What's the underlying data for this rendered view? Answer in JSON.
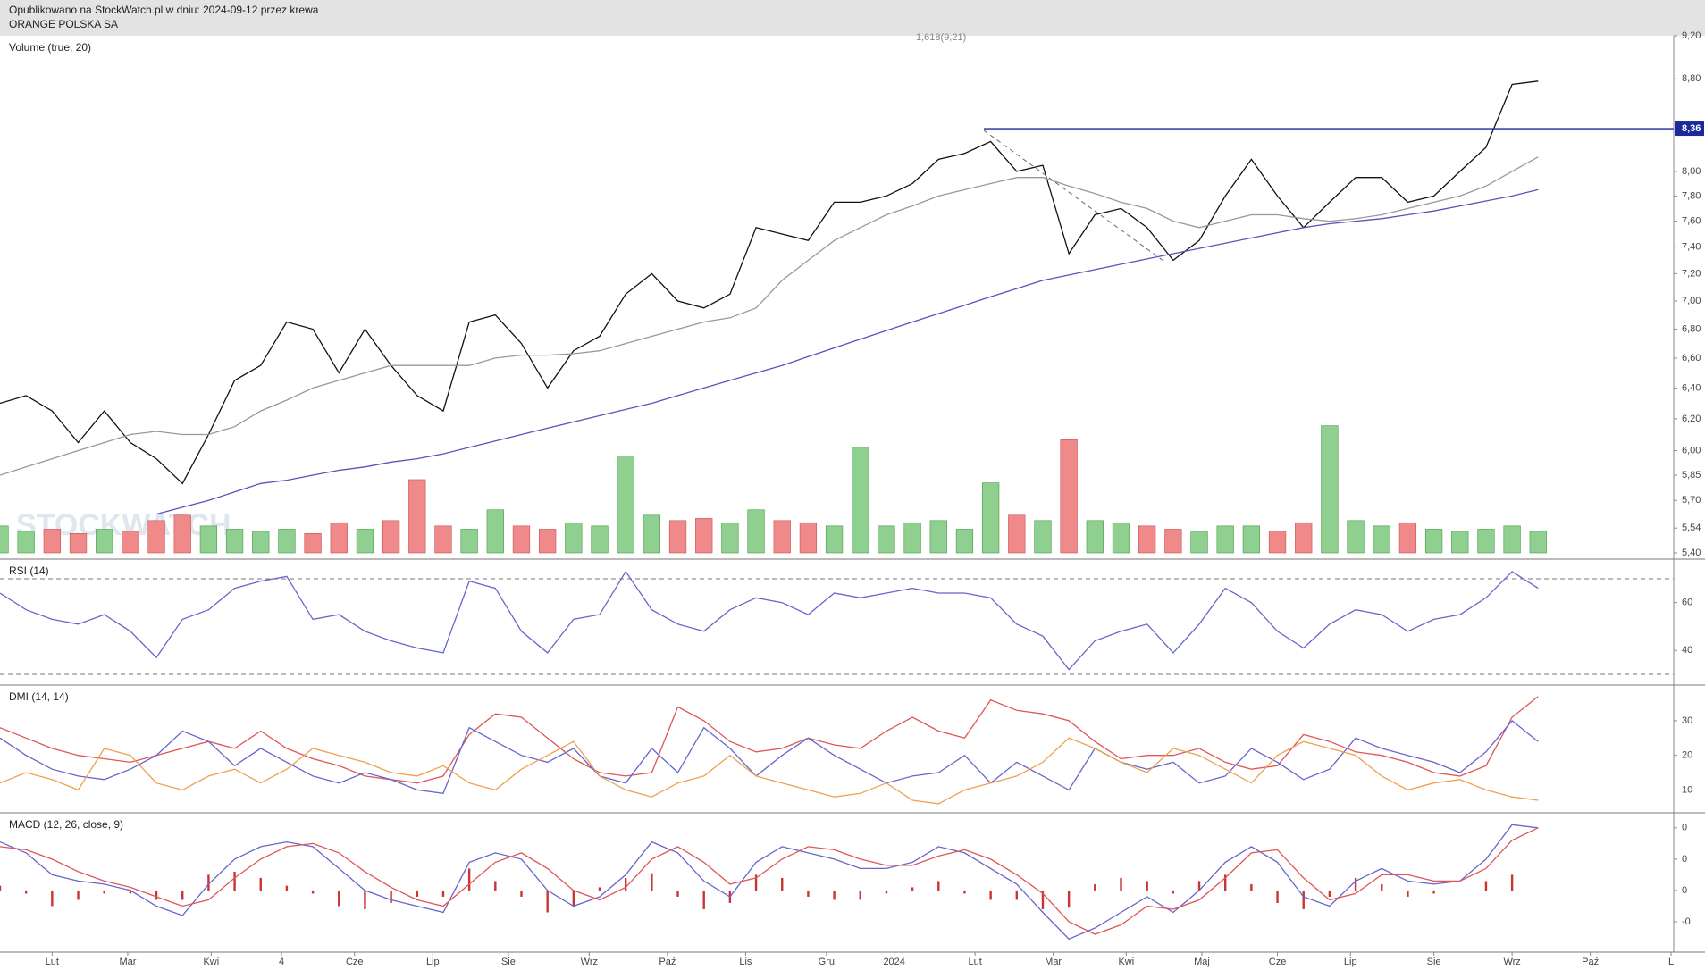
{
  "header": {
    "line1": "Opublikowano na StockWatch.pl w dniu: 2024-09-12 przez krewa",
    "line2": "ORANGE POLSKA SA"
  },
  "watermark": "STOCKWATCH",
  "xaxis": {
    "xlim": [
      0,
      64.2
    ],
    "xticks": [
      {
        "value": 2.0,
        "label": "Lut"
      },
      {
        "value": 4.9,
        "label": "Mar"
      },
      {
        "value": 8.1,
        "label": "Kwi"
      },
      {
        "value": 10.8,
        "label": "4"
      },
      {
        "value": 13.6,
        "label": "Cze"
      },
      {
        "value": 16.6,
        "label": "Lip"
      },
      {
        "value": 19.5,
        "label": "Sie"
      },
      {
        "value": 22.6,
        "label": "Wrz"
      },
      {
        "value": 25.6,
        "label": "Paź"
      },
      {
        "value": 28.6,
        "label": "Lis"
      },
      {
        "value": 31.7,
        "label": "Gru"
      },
      {
        "value": 34.3,
        "label": "2024"
      },
      {
        "value": 37.4,
        "label": "Lut"
      },
      {
        "value": 40.4,
        "label": "Mar"
      },
      {
        "value": 43.2,
        "label": "Kwi"
      },
      {
        "value": 46.1,
        "label": "Maj"
      },
      {
        "value": 49.0,
        "label": "Cze"
      },
      {
        "value": 51.8,
        "label": "Lip"
      },
      {
        "value": 55.0,
        "label": "Sie"
      },
      {
        "value": 58.0,
        "label": "Wrz"
      },
      {
        "value": 61.0,
        "label": "Paź"
      },
      {
        "value": 64.1,
        "label": "L"
      }
    ]
  },
  "chart_data": [
    {
      "type": "line",
      "title": "Volume (true, 20)",
      "log": true,
      "ylim": [
        5.4,
        9.2
      ],
      "yticks": [
        {
          "value": 9.2,
          "label": "9,20"
        },
        {
          "value": 8.8,
          "label": "8,80"
        },
        {
          "value": 8.0,
          "label": "8,00"
        },
        {
          "value": 7.8,
          "label": "7,80"
        },
        {
          "value": 7.6,
          "label": "7,60"
        },
        {
          "value": 7.4,
          "label": "7,40"
        },
        {
          "value": 7.2,
          "label": "7,20"
        },
        {
          "value": 7.0,
          "label": "7,00"
        },
        {
          "value": 6.8,
          "label": "6,80"
        },
        {
          "value": 6.6,
          "label": "6,60"
        },
        {
          "value": 6.4,
          "label": "6,40"
        },
        {
          "value": 6.2,
          "label": "6,20"
        },
        {
          "value": 6.0,
          "label": "6,00"
        },
        {
          "value": 5.85,
          "label": "5,85"
        },
        {
          "value": 5.7,
          "label": "5,70"
        },
        {
          "value": 5.54,
          "label": "5,54"
        },
        {
          "value": 5.4,
          "label": "5,40"
        }
      ],
      "hline": {
        "value": 8.36,
        "label": "8,36",
        "color": "#1a2a9a"
      },
      "annotation": "1,618(9,21)",
      "series": [
        {
          "color": "#111111",
          "values": [
            6.3,
            6.35,
            6.25,
            6.05,
            6.25,
            6.05,
            5.95,
            5.8,
            6.1,
            6.45,
            6.55,
            6.85,
            6.8,
            6.5,
            6.8,
            6.55,
            6.35,
            6.25,
            6.85,
            6.9,
            6.7,
            6.4,
            6.65,
            6.75,
            7.05,
            7.2,
            7.0,
            6.95,
            7.05,
            7.55,
            7.5,
            7.45,
            7.75,
            7.75,
            7.8,
            7.9,
            8.1,
            8.15,
            8.25,
            8.0,
            8.05,
            7.35,
            7.65,
            7.7,
            7.55,
            7.3,
            7.45,
            7.8,
            8.1,
            7.8,
            7.55,
            7.75,
            7.95,
            7.95,
            7.75,
            7.8,
            8.0,
            8.2,
            8.75,
            8.78
          ]
        },
        {
          "color": "#999999",
          "values": [
            5.85,
            5.9,
            5.95,
            6.0,
            6.05,
            6.1,
            6.12,
            6.1,
            6.1,
            6.15,
            6.25,
            6.32,
            6.4,
            6.45,
            6.5,
            6.55,
            6.55,
            6.55,
            6.55,
            6.6,
            6.62,
            6.62,
            6.63,
            6.65,
            6.7,
            6.75,
            6.8,
            6.85,
            6.88,
            6.95,
            7.15,
            7.3,
            7.45,
            7.55,
            7.65,
            7.72,
            7.8,
            7.85,
            7.9,
            7.95,
            7.95,
            7.88,
            7.82,
            7.75,
            7.7,
            7.6,
            7.55,
            7.6,
            7.65,
            7.65,
            7.62,
            7.6,
            7.62,
            7.65,
            7.7,
            7.75,
            7.8,
            7.88,
            8.0,
            8.12
          ]
        },
        {
          "color": "#5555bb",
          "values": [
            null,
            null,
            null,
            null,
            null,
            null,
            5.62,
            5.66,
            5.7,
            5.75,
            5.8,
            5.82,
            5.85,
            5.88,
            5.9,
            5.93,
            5.95,
            5.98,
            6.02,
            6.06,
            6.1,
            6.14,
            6.18,
            6.22,
            6.26,
            6.3,
            6.35,
            6.4,
            6.45,
            6.5,
            6.55,
            6.61,
            6.67,
            6.73,
            6.79,
            6.85,
            6.91,
            6.97,
            7.03,
            7.09,
            7.15,
            7.19,
            7.23,
            7.27,
            7.31,
            7.35,
            7.39,
            7.43,
            7.47,
            7.51,
            7.55,
            7.58,
            7.6,
            7.62,
            7.65,
            7.68,
            7.72,
            7.76,
            7.8,
            7.85
          ]
        }
      ],
      "volume": {
        "vlim": [
          0,
          480
        ],
        "up_color": "#8fcf8f",
        "down_color": "#f08a8a",
        "values": [
          25,
          20,
          22,
          18,
          22,
          20,
          30,
          35,
          25,
          22,
          20,
          22,
          18,
          28,
          22,
          30,
          68,
          25,
          22,
          40,
          25,
          22,
          28,
          25,
          90,
          35,
          30,
          32,
          28,
          40,
          30,
          28,
          25,
          98,
          25,
          28,
          30,
          22,
          65,
          35,
          30,
          105,
          30,
          28,
          25,
          22,
          20,
          25,
          25,
          20,
          28,
          118,
          30,
          25,
          28,
          22,
          20,
          22,
          25,
          20
        ]
      }
    },
    {
      "type": "line",
      "title": "RSI (14)",
      "ylim": [
        25.5,
        78.2
      ],
      "yticks": [
        60,
        40
      ],
      "levels": [
        70,
        30
      ],
      "series": [
        {
          "color": "#6666cc",
          "values": [
            64,
            57,
            53,
            51,
            55,
            48,
            37,
            53,
            57,
            66,
            69,
            71,
            53,
            55,
            48,
            44,
            41,
            39,
            69,
            66,
            48,
            39,
            53,
            55,
            73,
            57,
            51,
            48,
            57,
            62,
            60,
            55,
            64,
            62,
            64,
            66,
            64,
            64,
            62,
            51,
            46,
            32,
            44,
            48,
            51,
            39,
            51,
            66,
            60,
            48,
            41,
            51,
            57,
            55,
            48,
            53,
            55,
            62,
            73,
            66
          ]
        }
      ]
    },
    {
      "type": "line",
      "title": "DMI (14, 14)",
      "ylim": [
        3.4,
        40.3
      ],
      "yticks": [
        30,
        20,
        10
      ],
      "series": [
        {
          "color": "#e05555",
          "values": [
            28,
            25,
            22,
            20,
            19,
            18,
            20,
            22,
            24,
            22,
            27,
            22,
            19,
            17,
            14,
            13,
            12,
            14,
            26,
            32,
            31,
            25,
            19,
            15,
            14,
            15,
            34,
            30,
            24,
            21,
            22,
            25,
            23,
            22,
            27,
            31,
            27,
            25,
            36,
            33,
            32,
            30,
            24,
            19,
            20,
            20,
            22,
            18,
            16,
            17,
            26,
            24,
            21,
            20,
            18,
            15,
            14,
            17,
            31,
            37
          ]
        },
        {
          "color": "#6666cc",
          "values": [
            25,
            20,
            16,
            14,
            13,
            16,
            20,
            27,
            24,
            17,
            22,
            18,
            14,
            12,
            15,
            13,
            10,
            9,
            28,
            24,
            20,
            18,
            22,
            14,
            12,
            22,
            15,
            28,
            22,
            14,
            20,
            25,
            20,
            16,
            12,
            14,
            15,
            20,
            12,
            18,
            14,
            10,
            22,
            18,
            16,
            18,
            12,
            14,
            22,
            18,
            13,
            16,
            25,
            22,
            20,
            18,
            15,
            21,
            30,
            24
          ]
        },
        {
          "color": "#f0a050",
          "values": [
            12,
            15,
            13,
            10,
            22,
            20,
            12,
            10,
            14,
            16,
            12,
            16,
            22,
            20,
            18,
            15,
            14,
            17,
            12,
            10,
            16,
            20,
            24,
            14,
            10,
            8,
            12,
            14,
            20,
            14,
            12,
            10,
            8,
            9,
            12,
            7,
            6,
            10,
            12,
            14,
            18,
            25,
            22,
            18,
            15,
            22,
            20,
            16,
            12,
            20,
            24,
            22,
            20,
            14,
            10,
            12,
            13,
            10,
            8,
            7
          ]
        }
      ]
    },
    {
      "type": "line",
      "title": "MACD (12, 26, close, 9)",
      "ylim": [
        -0.197,
        0.248
      ],
      "yticks": [
        {
          "value": 0.2,
          "label": "0"
        },
        {
          "value": 0.1,
          "label": "0"
        },
        {
          "value": 0,
          "label": "0"
        },
        {
          "value": -0.1,
          "label": "-0"
        }
      ],
      "series": [
        {
          "color": "#6666cc",
          "values": [
            0.155,
            0.12,
            0.05,
            0.03,
            0.02,
            0.0,
            -0.05,
            -0.08,
            0.02,
            0.1,
            0.14,
            0.155,
            0.14,
            0.07,
            0.0,
            -0.03,
            -0.05,
            -0.07,
            0.09,
            0.12,
            0.1,
            0.0,
            -0.05,
            -0.02,
            0.05,
            0.155,
            0.12,
            0.03,
            -0.02,
            0.09,
            0.14,
            0.12,
            0.1,
            0.07,
            0.07,
            0.09,
            0.14,
            0.12,
            0.07,
            0.02,
            -0.07,
            -0.155,
            -0.12,
            -0.07,
            -0.02,
            -0.07,
            0.0,
            0.09,
            0.14,
            0.09,
            -0.02,
            -0.05,
            0.03,
            0.07,
            0.03,
            0.02,
            0.03,
            0.1,
            0.21,
            0.2
          ]
        },
        {
          "color": "#e05555",
          "values": [
            0.14,
            0.13,
            0.1,
            0.06,
            0.03,
            0.01,
            -0.02,
            -0.05,
            -0.03,
            0.04,
            0.1,
            0.14,
            0.15,
            0.12,
            0.06,
            0.01,
            -0.03,
            -0.05,
            0.02,
            0.09,
            0.12,
            0.07,
            0.0,
            -0.03,
            0.01,
            0.1,
            0.14,
            0.09,
            0.02,
            0.04,
            0.1,
            0.14,
            0.13,
            0.1,
            0.08,
            0.08,
            0.11,
            0.13,
            0.1,
            0.05,
            -0.01,
            -0.1,
            -0.14,
            -0.11,
            -0.05,
            -0.06,
            -0.03,
            0.04,
            0.12,
            0.13,
            0.04,
            -0.03,
            -0.01,
            0.05,
            0.05,
            0.03,
            0.03,
            0.07,
            0.16,
            0.2
          ]
        }
      ],
      "histogram": {
        "color": "#cc3333",
        "values": [
          0.015,
          -0.01,
          -0.05,
          -0.03,
          -0.01,
          -0.01,
          -0.03,
          -0.03,
          0.05,
          0.06,
          0.04,
          0.015,
          -0.01,
          -0.05,
          -0.06,
          -0.04,
          -0.02,
          -0.02,
          0.07,
          0.03,
          -0.02,
          -0.07,
          -0.05,
          0.01,
          0.04,
          0.055,
          -0.02,
          -0.06,
          -0.04,
          0.05,
          0.04,
          -0.02,
          -0.03,
          -0.03,
          -0.01,
          0.01,
          0.03,
          -0.01,
          -0.03,
          -0.03,
          -0.06,
          -0.055,
          0.02,
          0.04,
          0.03,
          -0.01,
          0.03,
          0.05,
          0.02,
          -0.04,
          -0.06,
          -0.02,
          0.04,
          0.02,
          -0.02,
          -0.01,
          0,
          0.03,
          0.05,
          0
        ]
      }
    }
  ]
}
